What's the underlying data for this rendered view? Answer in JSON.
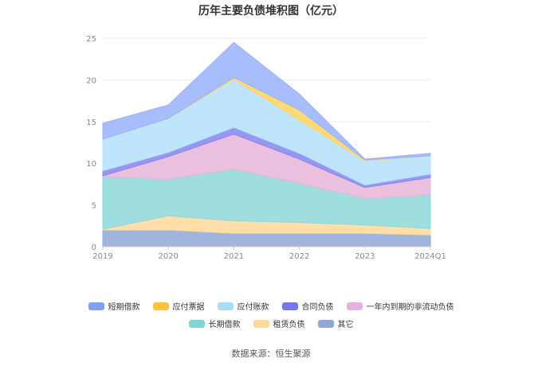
{
  "chart_data": {
    "type": "area",
    "stacked": true,
    "title": "历年主要负债堆积图（亿元）",
    "categories": [
      "2019",
      "2020",
      "2021",
      "2022",
      "2023",
      "2024Q1"
    ],
    "ylim": [
      0,
      25
    ],
    "yticks": [
      "0",
      "5",
      "10",
      "15",
      "20",
      "25"
    ],
    "grid": true,
    "legend_position": "bottom",
    "series": [
      {
        "name": "其它",
        "color": "#8FA8D8",
        "values": [
          2.0,
          2.0,
          1.6,
          1.6,
          1.6,
          1.4
        ]
      },
      {
        "name": "租赁负债",
        "color": "#FFD89A",
        "values": [
          0.1,
          1.7,
          1.5,
          1.3,
          1.0,
          0.8
        ]
      },
      {
        "name": "长期借款",
        "color": "#8ED8D8",
        "values": [
          6.3,
          4.4,
          6.2,
          4.7,
          3.2,
          4.0
        ]
      },
      {
        "name": "一年内到期的非流动负债",
        "color": "#E7B4D8",
        "values": [
          0.1,
          2.7,
          4.2,
          2.9,
          1.3,
          2.1
        ]
      },
      {
        "name": "合同负债",
        "color": "#8585EE",
        "values": [
          0.6,
          0.5,
          0.8,
          0.7,
          0.3,
          0.4
        ]
      },
      {
        "name": "应付账款",
        "color": "#B3E1FB",
        "values": [
          3.8,
          4.1,
          5.8,
          4.0,
          2.9,
          2.2
        ]
      },
      {
        "name": "应付票据",
        "color": "#FFD45A",
        "values": [
          0.0,
          0.0,
          0.2,
          1.2,
          0.1,
          0.0
        ]
      },
      {
        "name": "短期借款",
        "color": "#99B2FA",
        "values": [
          1.9,
          1.6,
          4.2,
          1.9,
          0.1,
          0.3
        ]
      }
    ]
  },
  "legend": {
    "row1": [
      {
        "label": "短期借款",
        "color": "#7FA0F5"
      },
      {
        "label": "应付票据",
        "color": "#FFC23D"
      },
      {
        "label": "应付账款",
        "color": "#A7DDF8"
      },
      {
        "label": "合同负债",
        "color": "#7777EE"
      },
      {
        "label": "一年内到期的非流动负债",
        "color": "#E2B3DC"
      }
    ],
    "row2": [
      {
        "label": "长期借款",
        "color": "#7FD5D5"
      },
      {
        "label": "租赁负债",
        "color": "#FFD99A"
      },
      {
        "label": "其它",
        "color": "#8FA8D8"
      }
    ]
  },
  "source": "数据来源：恒生聚源"
}
